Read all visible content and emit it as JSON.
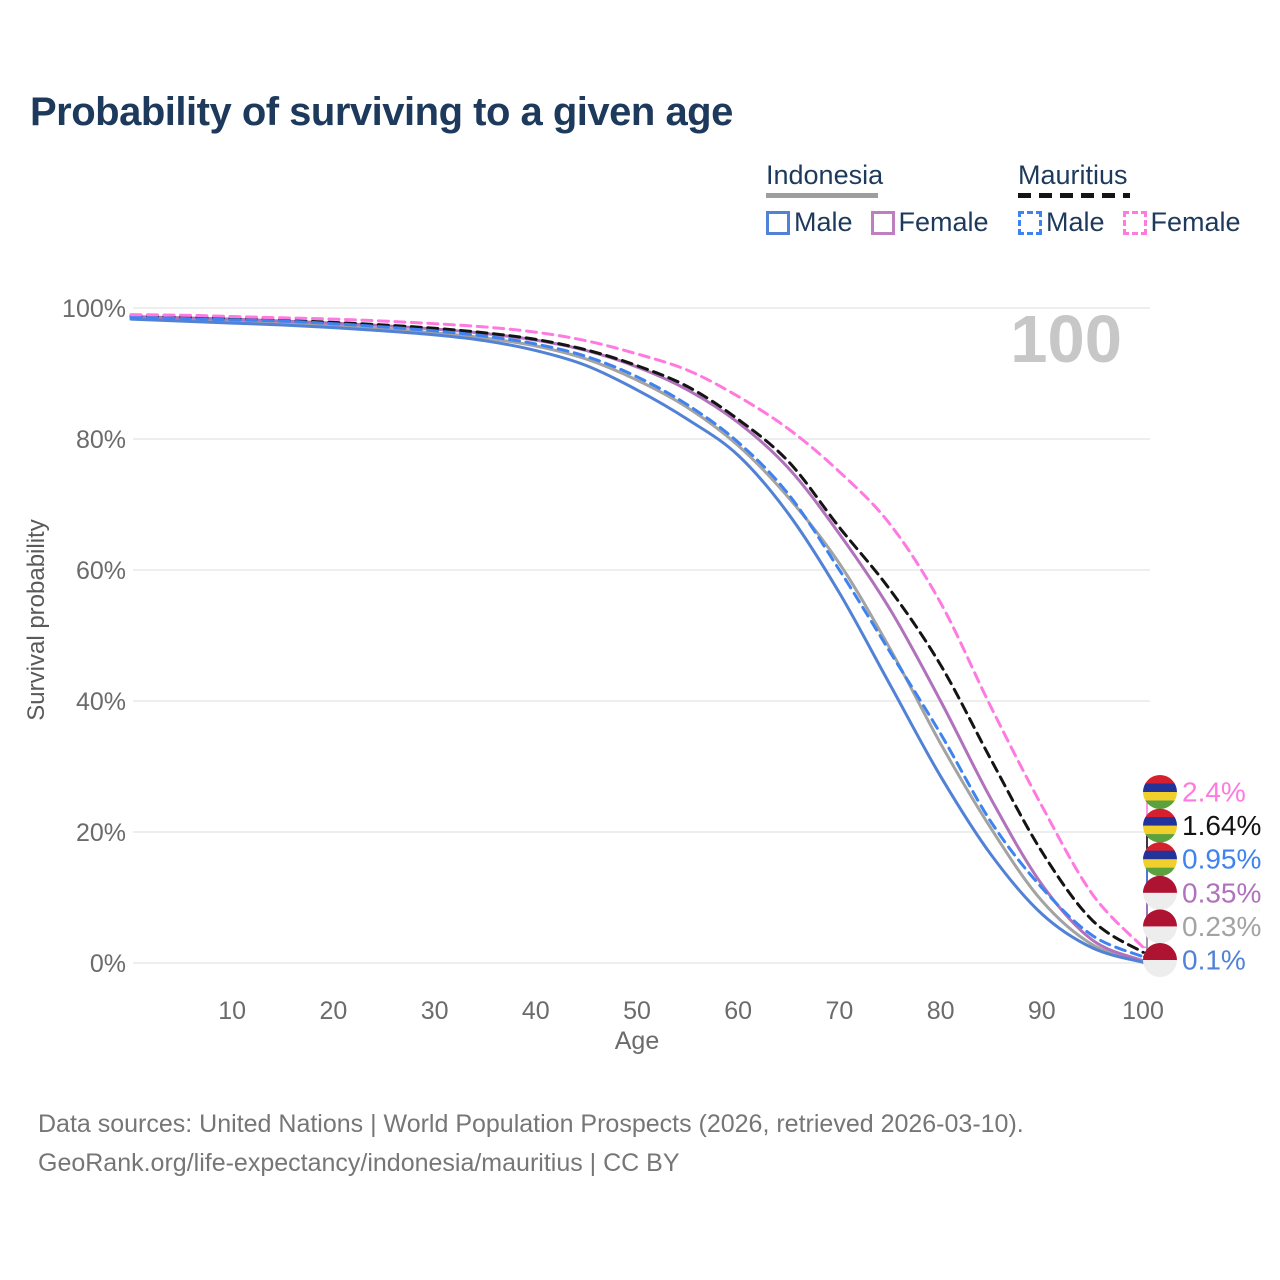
{
  "page": {
    "title": "Probability of surviving to a given age",
    "age_counter": "100",
    "footer_line1": "Data sources: United Nations | World Population Prospects (2026, retrieved 2026-03-10).",
    "footer_line2": "GeoRank.org/life-expectancy/indonesia/mauritius | CC BY"
  },
  "legend": {
    "groups": [
      {
        "label": "Indonesia",
        "underline_style": "solid",
        "underline_color": "#9e9e9e",
        "items": [
          {
            "label": "Male",
            "box_color": "#5282d6",
            "box_style": "solid"
          },
          {
            "label": "Female",
            "box_color": "#bd7fc0",
            "box_style": "solid"
          }
        ]
      },
      {
        "label": "Mauritius",
        "underline_style": "dashed",
        "underline_color": "#141414",
        "items": [
          {
            "label": "Male",
            "box_color": "#3f83f0",
            "box_style": "dashed"
          },
          {
            "label": "Female",
            "box_color": "#ff7ae0",
            "box_style": "dashed"
          }
        ]
      }
    ]
  },
  "chart_data": {
    "type": "line",
    "title": "Probability of surviving to a given age",
    "xlabel": "Age",
    "ylabel": "Survival probability",
    "xlim": [
      0,
      100
    ],
    "ylim": [
      0,
      100
    ],
    "xticks": [
      10,
      20,
      30,
      40,
      50,
      60,
      70,
      80,
      90,
      100
    ],
    "yticks": [
      0,
      20,
      40,
      60,
      80,
      100
    ],
    "ytick_suffix": "%",
    "grid": "horizontal",
    "legend_position": "top-right",
    "age_watermark": "100",
    "x": [
      0,
      5,
      10,
      15,
      20,
      25,
      30,
      35,
      40,
      45,
      50,
      55,
      60,
      65,
      70,
      75,
      80,
      85,
      90,
      95,
      100
    ],
    "series": [
      {
        "id": "indonesia-total",
        "name": "Indonesia",
        "country": "Indonesia",
        "sex": "Both",
        "style": "solid",
        "color": "#a3a3a3",
        "flag": "indonesia",
        "end_label": "0.23%",
        "values": [
          98.5,
          98.2,
          98.0,
          97.7,
          97.3,
          96.8,
          96.2,
          95.4,
          94.2,
          92.2,
          89.0,
          84.8,
          79.0,
          71.0,
          61.0,
          48.0,
          33.5,
          20.5,
          9.5,
          2.8,
          0.23
        ]
      },
      {
        "id": "indonesia-female",
        "name": "Indonesia Female",
        "country": "Indonesia",
        "sex": "Female",
        "style": "solid",
        "color": "#b172bc",
        "flag": "indonesia",
        "end_label": "0.35%",
        "values": [
          98.7,
          98.5,
          98.3,
          98.0,
          97.7,
          97.3,
          96.8,
          96.1,
          95.1,
          93.5,
          91.0,
          87.5,
          82.5,
          75.5,
          65.5,
          54.0,
          40.0,
          25.0,
          12.0,
          3.5,
          0.35
        ]
      },
      {
        "id": "indonesia-male",
        "name": "Indonesia Male",
        "country": "Indonesia",
        "sex": "Male",
        "style": "solid",
        "color": "#5282d6",
        "flag": "indonesia",
        "end_label": "0.1%",
        "values": [
          98.3,
          98.0,
          97.7,
          97.4,
          97.0,
          96.5,
          95.9,
          95.0,
          93.5,
          91.2,
          87.5,
          83.0,
          77.5,
          68.5,
          56.5,
          42.5,
          28.5,
          16.5,
          7.5,
          2.3,
          0.1
        ]
      },
      {
        "id": "mauritius-total",
        "name": "Mauritius",
        "country": "Mauritius",
        "sex": "Both",
        "style": "dashed",
        "color": "#141414",
        "flag": "mauritius",
        "end_label": "1.64%",
        "values": [
          98.8,
          98.6,
          98.4,
          98.1,
          97.8,
          97.4,
          96.9,
          96.2,
          95.2,
          93.6,
          91.2,
          88.0,
          83.0,
          76.5,
          66.5,
          57.0,
          45.5,
          31.0,
          17.0,
          6.5,
          1.64
        ]
      },
      {
        "id": "mauritius-male",
        "name": "Mauritius Male",
        "country": "Mauritius",
        "sex": "Male",
        "style": "dashed",
        "color": "#3f83f0",
        "flag": "mauritius",
        "end_label": "0.95%",
        "values": [
          98.6,
          98.4,
          98.2,
          98.0,
          97.6,
          97.1,
          96.5,
          95.7,
          94.5,
          92.6,
          89.5,
          85.2,
          79.5,
          71.5,
          60.0,
          47.5,
          35.0,
          21.5,
          11.5,
          4.2,
          0.95
        ]
      },
      {
        "id": "mauritius-female",
        "name": "Mauritius Female",
        "country": "Mauritius",
        "sex": "Female",
        "style": "dashed",
        "color": "#ff7ae0",
        "flag": "mauritius",
        "end_label": "2.4%",
        "values": [
          99.0,
          98.9,
          98.7,
          98.5,
          98.3,
          98.0,
          97.6,
          97.1,
          96.3,
          95.0,
          93.0,
          90.5,
          86.5,
          81.5,
          75.0,
          67.0,
          55.0,
          39.0,
          24.0,
          10.5,
          2.4
        ]
      }
    ]
  },
  "flags": {
    "mauritius_stripes": [
      "#d6202f",
      "#22339a",
      "#f2d02c",
      "#5ba23f"
    ],
    "indonesia_stripes": [
      "#ae1332",
      "#ededed"
    ]
  },
  "colors": {
    "title_text": "#1d3a5c",
    "axis_text": "#6b6b6b",
    "gridline": "#e9e9e9",
    "watermark": "#c7c7c7",
    "footer_text": "#767676"
  }
}
